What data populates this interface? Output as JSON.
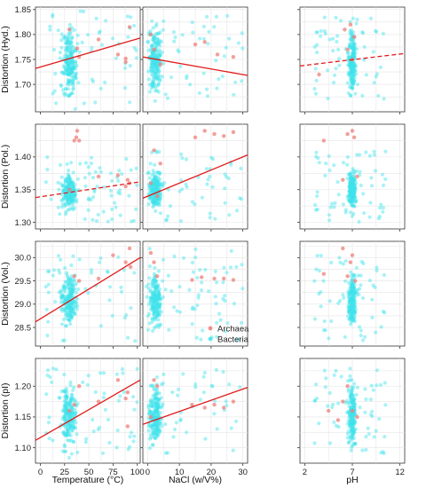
{
  "colors": {
    "archaea": "#ee7f79",
    "bacteria": "#3fe3ea",
    "fit": "#e11b1b",
    "grid": "#e5e5e5",
    "border": "#333333"
  },
  "legend": {
    "position": "inside-bottom-right",
    "entries": [
      "Archaea",
      "Bacteria"
    ]
  },
  "x_axes": [
    {
      "label": "Temperature (°C)",
      "range": [
        -5,
        103
      ],
      "ticks": [
        0,
        25,
        50,
        75,
        100
      ],
      "minor": [
        12.5,
        37.5,
        62.5,
        87.5
      ]
    },
    {
      "label": "NaCl (w/V%)",
      "range": [
        -1.5,
        31.5
      ],
      "ticks": [
        0,
        10,
        20,
        30
      ],
      "minor": [
        5,
        15,
        25
      ]
    },
    {
      "label": "pH",
      "range": [
        1.5,
        12.5
      ],
      "ticks": [
        2,
        7,
        12
      ],
      "minor": [
        4.5,
        9.5
      ]
    }
  ],
  "y_axes": [
    {
      "label": "Distortion (Hyd.)",
      "range": [
        1.645,
        1.855
      ],
      "ticks": [
        1.7,
        1.75,
        1.8,
        1.85
      ],
      "ticklabels": [
        "1.70",
        "1.75",
        "1.80",
        "1.85"
      ],
      "minor": [
        1.675,
        1.725,
        1.775,
        1.825
      ]
    },
    {
      "label": "Distortion (Pol.)",
      "range": [
        1.29,
        1.45
      ],
      "ticks": [
        1.3,
        1.35,
        1.4
      ],
      "ticklabels": [
        "1.30",
        "1.35",
        "1.40"
      ],
      "minor": [
        1.325,
        1.375,
        1.425
      ]
    },
    {
      "label": "Distortion (Vol.)",
      "range": [
        28.1,
        30.35
      ],
      "ticks": [
        28.5,
        29.0,
        29.5,
        30.0
      ],
      "ticklabels": [
        "28.5",
        "29.0",
        "29.5",
        "30.0"
      ],
      "minor": [
        28.75,
        29.25,
        29.75,
        30.25
      ]
    },
    {
      "label": "Distortion (pI)",
      "range": [
        1.075,
        1.245
      ],
      "ticks": [
        1.1,
        1.15,
        1.2
      ],
      "ticklabels": [
        "1.10",
        "1.15",
        "1.20"
      ],
      "minor": [
        1.125,
        1.175,
        1.225
      ]
    }
  ],
  "chart_data": {
    "type": "scatter",
    "layout": "4x3 facet grid",
    "series_names": [
      "Archaea",
      "Bacteria"
    ],
    "x_variables": [
      "Temperature (°C)",
      "NaCl (w/V%)",
      "pH"
    ],
    "y_variables": [
      "Distortion (Hyd.)",
      "Distortion (Pol.)",
      "Distortion (Vol.)",
      "Distortion (pI)"
    ],
    "grid": true,
    "panels": [
      {
        "row": 0,
        "col": 0,
        "fit": {
          "x": [
            -5,
            103
          ],
          "y": [
            1.732,
            1.793
          ],
          "style": "solid"
        },
        "bacteria_center": {
          "x": [
            20,
            40
          ],
          "y": [
            1.65,
            1.84
          ]
        },
        "bacteria_spread": {
          "x": [
            5,
            100
          ],
          "y": [
            1.66,
            1.85
          ]
        },
        "archaea": [
          [
            38,
            1.772
          ],
          [
            60,
            1.79
          ],
          [
            80,
            1.76
          ],
          [
            88,
            1.752
          ],
          [
            88,
            1.745
          ],
          [
            92,
            1.815
          ],
          [
            30,
            1.81
          ],
          [
            40,
            1.755
          ]
        ]
      },
      {
        "row": 0,
        "col": 1,
        "fit": {
          "x": [
            -1.5,
            31.5
          ],
          "y": [
            1.755,
            1.718
          ],
          "style": "solid"
        },
        "bacteria_center": {
          "x": [
            0,
            5
          ],
          "y": [
            1.65,
            1.84
          ]
        },
        "bacteria_spread": {
          "x": [
            0,
            30
          ],
          "y": [
            1.67,
            1.84
          ]
        },
        "archaea": [
          [
            2,
            1.77
          ],
          [
            4,
            1.74
          ],
          [
            15,
            1.78
          ],
          [
            18,
            1.785
          ],
          [
            22,
            1.76
          ],
          [
            27,
            1.755
          ],
          [
            1,
            1.8
          ]
        ]
      },
      {
        "row": 0,
        "col": 2,
        "fit": {
          "x": [
            1.5,
            12.5
          ],
          "y": [
            1.737,
            1.762
          ],
          "style": "dashed"
        },
        "bacteria_center": {
          "x": [
            6.5,
            7.5
          ],
          "y": [
            1.65,
            1.84
          ]
        },
        "bacteria_spread": {
          "x": [
            3,
            10.5
          ],
          "y": [
            1.67,
            1.84
          ]
        },
        "archaea": [
          [
            6.2,
            1.81
          ],
          [
            6.8,
            1.82
          ],
          [
            7,
            1.75
          ],
          [
            6.5,
            1.77
          ],
          [
            3.5,
            1.72
          ],
          [
            7.2,
            1.795
          ]
        ]
      },
      {
        "row": 1,
        "col": 0,
        "fit": {
          "x": [
            -5,
            103
          ],
          "y": [
            1.338,
            1.362
          ],
          "style": "dashed"
        },
        "bacteria_center": {
          "x": [
            20,
            40
          ],
          "y": [
            1.31,
            1.385
          ]
        },
        "bacteria_spread": {
          "x": [
            5,
            100
          ],
          "y": [
            1.3,
            1.4
          ]
        },
        "archaea": [
          [
            35,
            1.425
          ],
          [
            37,
            1.43
          ],
          [
            38,
            1.44
          ],
          [
            40,
            1.425
          ],
          [
            30,
            1.35
          ],
          [
            60,
            1.37
          ],
          [
            80,
            1.372
          ],
          [
            90,
            1.365
          ],
          [
            92,
            1.36
          ],
          [
            88,
            1.355
          ]
        ]
      },
      {
        "row": 1,
        "col": 1,
        "fit": {
          "x": [
            -1.5,
            31.5
          ],
          "y": [
            1.337,
            1.403
          ],
          "style": "solid"
        },
        "bacteria_center": {
          "x": [
            0,
            5
          ],
          "y": [
            1.31,
            1.39
          ]
        },
        "bacteria_spread": {
          "x": [
            0,
            30
          ],
          "y": [
            1.3,
            1.41
          ]
        },
        "archaea": [
          [
            2,
            1.41
          ],
          [
            4,
            1.39
          ],
          [
            15,
            1.43
          ],
          [
            18,
            1.44
          ],
          [
            21,
            1.435
          ],
          [
            24,
            1.432
          ],
          [
            27,
            1.438
          ],
          [
            1,
            1.36
          ],
          [
            3,
            1.34
          ]
        ]
      },
      {
        "row": 1,
        "col": 2,
        "fit": null,
        "bacteria_center": {
          "x": [
            6.5,
            7.5
          ],
          "y": [
            1.31,
            1.39
          ]
        },
        "bacteria_spread": {
          "x": [
            3,
            10.5
          ],
          "y": [
            1.3,
            1.41
          ]
        },
        "archaea": [
          [
            6.5,
            1.435
          ],
          [
            7,
            1.44
          ],
          [
            7.2,
            1.43
          ],
          [
            4,
            1.425
          ],
          [
            6,
            1.365
          ],
          [
            7.5,
            1.37
          ]
        ]
      },
      {
        "row": 2,
        "col": 0,
        "fit": {
          "x": [
            -5,
            103
          ],
          "y": [
            28.62,
            30.0
          ],
          "style": "solid"
        },
        "bacteria_center": {
          "x": [
            20,
            40
          ],
          "y": [
            28.3,
            29.9
          ]
        },
        "bacteria_spread": {
          "x": [
            5,
            100
          ],
          "y": [
            28.2,
            30.1
          ]
        },
        "archaea": [
          [
            35,
            29.6
          ],
          [
            40,
            29.5
          ],
          [
            75,
            30.05
          ],
          [
            88,
            29.9
          ],
          [
            92,
            30.2
          ],
          [
            93,
            29.8
          ],
          [
            60,
            29.55
          ]
        ]
      },
      {
        "row": 2,
        "col": 1,
        "fit": null,
        "bacteria_center": {
          "x": [
            0,
            5
          ],
          "y": [
            28.3,
            29.9
          ]
        },
        "bacteria_spread": {
          "x": [
            0,
            30
          ],
          "y": [
            28.2,
            30.2
          ]
        },
        "archaea": [
          [
            2,
            29.9
          ],
          [
            3,
            29.6
          ],
          [
            14,
            29.52
          ],
          [
            17,
            29.58
          ],
          [
            21,
            29.55
          ],
          [
            24,
            29.55
          ],
          [
            27,
            29.52
          ],
          [
            1,
            30.1
          ]
        ]
      },
      {
        "row": 2,
        "col": 2,
        "fit": null,
        "bacteria_center": {
          "x": [
            6.5,
            7.5
          ],
          "y": [
            28.3,
            29.9
          ]
        },
        "bacteria_spread": {
          "x": [
            3,
            10.5
          ],
          "y": [
            28.2,
            30.1
          ]
        },
        "archaea": [
          [
            6,
            30.2
          ],
          [
            7,
            30.05
          ],
          [
            6.5,
            29.6
          ],
          [
            4,
            29.65
          ],
          [
            7.3,
            29.5
          ],
          [
            6.8,
            29.9
          ]
        ]
      },
      {
        "row": 3,
        "col": 0,
        "fit": {
          "x": [
            -5,
            103
          ],
          "y": [
            1.112,
            1.21
          ],
          "style": "solid"
        },
        "bacteria_center": {
          "x": [
            20,
            40
          ],
          "y": [
            1.085,
            1.22
          ]
        },
        "bacteria_spread": {
          "x": [
            5,
            100
          ],
          "y": [
            1.09,
            1.23
          ]
        },
        "archaea": [
          [
            30,
            1.16
          ],
          [
            35,
            1.17
          ],
          [
            40,
            1.2
          ],
          [
            80,
            1.21
          ],
          [
            88,
            1.18
          ],
          [
            90,
            1.19
          ],
          [
            90,
            1.135
          ],
          [
            60,
            1.175
          ]
        ]
      },
      {
        "row": 3,
        "col": 1,
        "fit": {
          "x": [
            -1.5,
            31.5
          ],
          "y": [
            1.138,
            1.198
          ],
          "style": "solid"
        },
        "bacteria_center": {
          "x": [
            0,
            5
          ],
          "y": [
            1.085,
            1.22
          ]
        },
        "bacteria_spread": {
          "x": [
            0,
            30
          ],
          "y": [
            1.09,
            1.23
          ]
        },
        "archaea": [
          [
            2,
            1.21
          ],
          [
            3,
            1.2
          ],
          [
            14,
            1.17
          ],
          [
            18,
            1.165
          ],
          [
            21,
            1.17
          ],
          [
            24,
            1.165
          ],
          [
            27,
            1.175
          ],
          [
            1,
            1.15
          ]
        ]
      },
      {
        "row": 3,
        "col": 2,
        "fit": null,
        "bacteria_center": {
          "x": [
            6.5,
            7.5
          ],
          "y": [
            1.085,
            1.22
          ]
        },
        "bacteria_spread": {
          "x": [
            3,
            10.5
          ],
          "y": [
            1.09,
            1.23
          ]
        },
        "archaea": [
          [
            6.5,
            1.2
          ],
          [
            7,
            1.16
          ],
          [
            4.5,
            1.16
          ],
          [
            6,
            1.175
          ],
          [
            7.5,
            1.15
          ],
          [
            5.5,
            1.145
          ]
        ]
      }
    ]
  }
}
